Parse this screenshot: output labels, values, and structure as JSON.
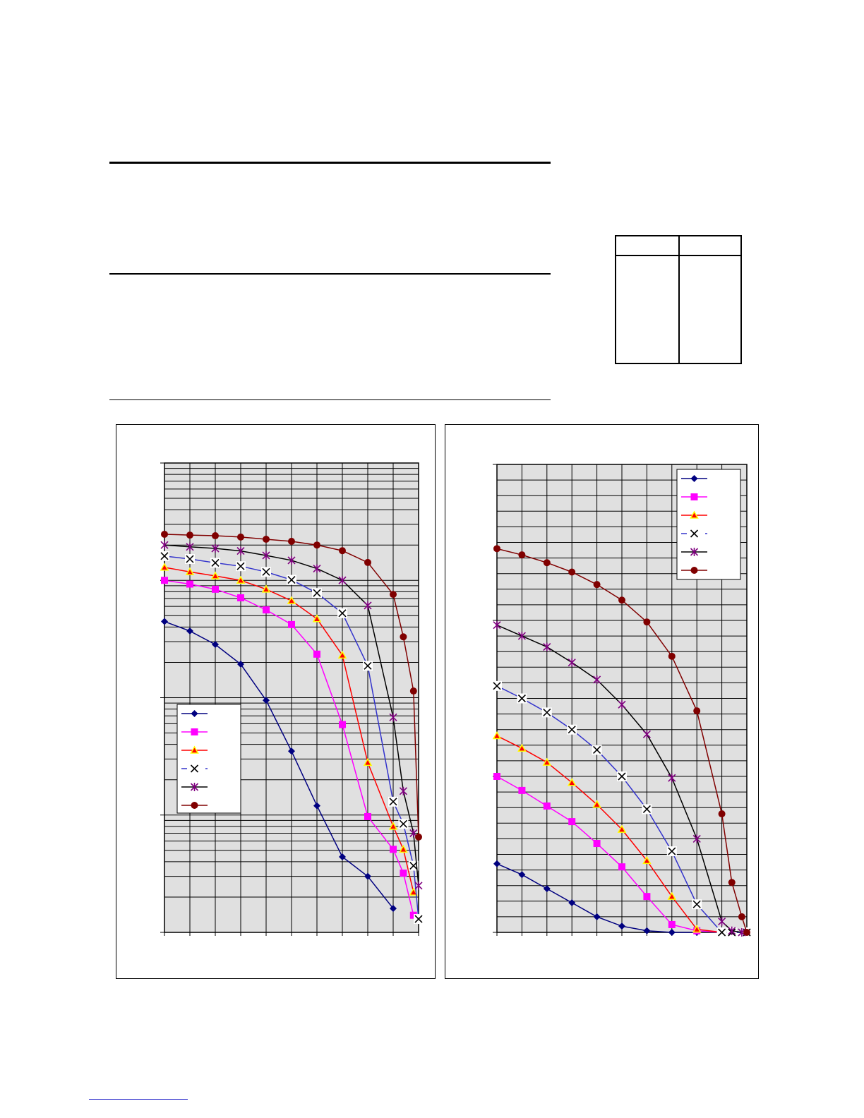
{
  "colors": {
    "plot_background": "#E0E0E0",
    "grid": "#000000",
    "series_colors": [
      "#000080",
      "#FF00FF",
      "#FF0000",
      "#3333CC",
      "#000000",
      "#800000"
    ],
    "marker_colors": [
      "#000080",
      "#FF00FF",
      "#FF0000",
      "#000000",
      "#800080",
      "#800000"
    ],
    "footer_link": "#3333CC"
  },
  "chart_data": [
    {
      "type": "line",
      "title": "",
      "xlabel": "",
      "ylabel": "",
      "xlim": [
        0,
        10
      ],
      "ylim": [
        1,
        10000
      ],
      "y_scale": "log",
      "grid": true,
      "legend": "bottom-left",
      "series": [
        {
          "marker": "diamond",
          "line": "solid",
          "x": [
            0,
            1,
            2,
            3,
            4,
            5,
            6,
            7,
            8,
            9
          ],
          "y": [
            446,
            370,
            284,
            193,
            95,
            35,
            12,
            4.4,
            3.0,
            1.6
          ]
        },
        {
          "marker": "square",
          "line": "solid",
          "x": [
            0,
            1,
            2,
            3,
            4,
            5,
            6,
            7,
            8,
            9,
            9.4,
            9.8
          ],
          "y": [
            1000,
            930,
            840,
            710,
            560,
            420,
            235,
            59,
            9.7,
            5.1,
            3.2,
            1.4
          ]
        },
        {
          "marker": "triangle",
          "line": "solid",
          "x": [
            0,
            1,
            2,
            3,
            4,
            5,
            6,
            7,
            8,
            9,
            9.4,
            9.8
          ],
          "y": [
            1290,
            1180,
            1090,
            1000,
            840,
            670,
            470,
            230,
            28,
            8,
            5.1,
            2.2
          ]
        },
        {
          "marker": "x",
          "line": "dashed",
          "x": [
            0,
            1,
            2,
            3,
            4,
            5,
            6,
            7,
            8,
            9,
            9.4,
            9.8,
            10
          ],
          "y": [
            1610,
            1520,
            1410,
            1320,
            1180,
            1010,
            780,
            525,
            187,
            13,
            8.4,
            3.7,
            1.3
          ]
        },
        {
          "marker": "star",
          "line": "solid",
          "x": [
            0,
            1,
            2,
            3,
            4,
            5,
            6,
            7,
            8,
            9,
            9.4,
            9.8,
            10
          ],
          "y": [
            2000,
            1930,
            1870,
            1780,
            1630,
            1480,
            1260,
            1000,
            610,
            68,
            16,
            7,
            2.5
          ]
        },
        {
          "marker": "circle",
          "line": "solid",
          "x": [
            0,
            1,
            2,
            3,
            4,
            5,
            6,
            7,
            8,
            9,
            9.4,
            9.8,
            10
          ],
          "y": [
            2470,
            2430,
            2400,
            2340,
            2240,
            2150,
            2000,
            1790,
            1420,
            760,
            330,
            114,
            6.5
          ]
        }
      ]
    },
    {
      "type": "line",
      "title": "",
      "xlabel": "",
      "ylabel": "",
      "xlim": [
        0,
        10
      ],
      "ylim": [
        0,
        30
      ],
      "y_scale": "linear",
      "grid": true,
      "legend": "top-right",
      "series": [
        {
          "marker": "diamond",
          "line": "solid",
          "x": [
            0,
            1,
            2,
            3,
            4,
            5,
            6,
            7,
            8
          ],
          "y": [
            4.4,
            3.7,
            2.8,
            1.9,
            1.0,
            0.4,
            0.1,
            0,
            0
          ]
        },
        {
          "marker": "square",
          "line": "solid",
          "x": [
            0,
            1,
            2,
            3,
            4,
            5,
            6,
            7,
            8,
            9
          ],
          "y": [
            10.0,
            9.1,
            8.1,
            7.1,
            5.7,
            4.2,
            2.3,
            0.5,
            0.1,
            0
          ]
        },
        {
          "marker": "triangle",
          "line": "solid",
          "x": [
            0,
            1,
            2,
            3,
            4,
            5,
            6,
            7,
            8,
            9
          ],
          "y": [
            12.6,
            11.8,
            10.9,
            9.6,
            8.2,
            6.6,
            4.6,
            2.3,
            0.2,
            0
          ]
        },
        {
          "marker": "x",
          "line": "dashed",
          "x": [
            0,
            1,
            2,
            3,
            4,
            5,
            6,
            7,
            8,
            9,
            9.4,
            10
          ],
          "y": [
            15.8,
            15.0,
            14.1,
            13.0,
            11.7,
            10.0,
            7.9,
            5.2,
            1.8,
            0,
            0,
            0
          ]
        },
        {
          "marker": "star",
          "line": "solid",
          "x": [
            0,
            1,
            2,
            3,
            4,
            5,
            6,
            7,
            8,
            9,
            9.4,
            9.8
          ],
          "y": [
            19.7,
            19.0,
            18.3,
            17.3,
            16.2,
            14.6,
            12.7,
            9.9,
            6.0,
            0.7,
            0.1,
            0
          ]
        },
        {
          "marker": "circle",
          "line": "solid",
          "x": [
            0,
            1,
            2,
            3,
            4,
            5,
            6,
            7,
            8,
            9,
            9.4,
            9.8,
            10
          ],
          "y": [
            24.6,
            24.2,
            23.7,
            23.1,
            22.3,
            21.3,
            19.9,
            17.7,
            14.2,
            7.6,
            3.2,
            1.0,
            0
          ]
        }
      ]
    }
  ]
}
